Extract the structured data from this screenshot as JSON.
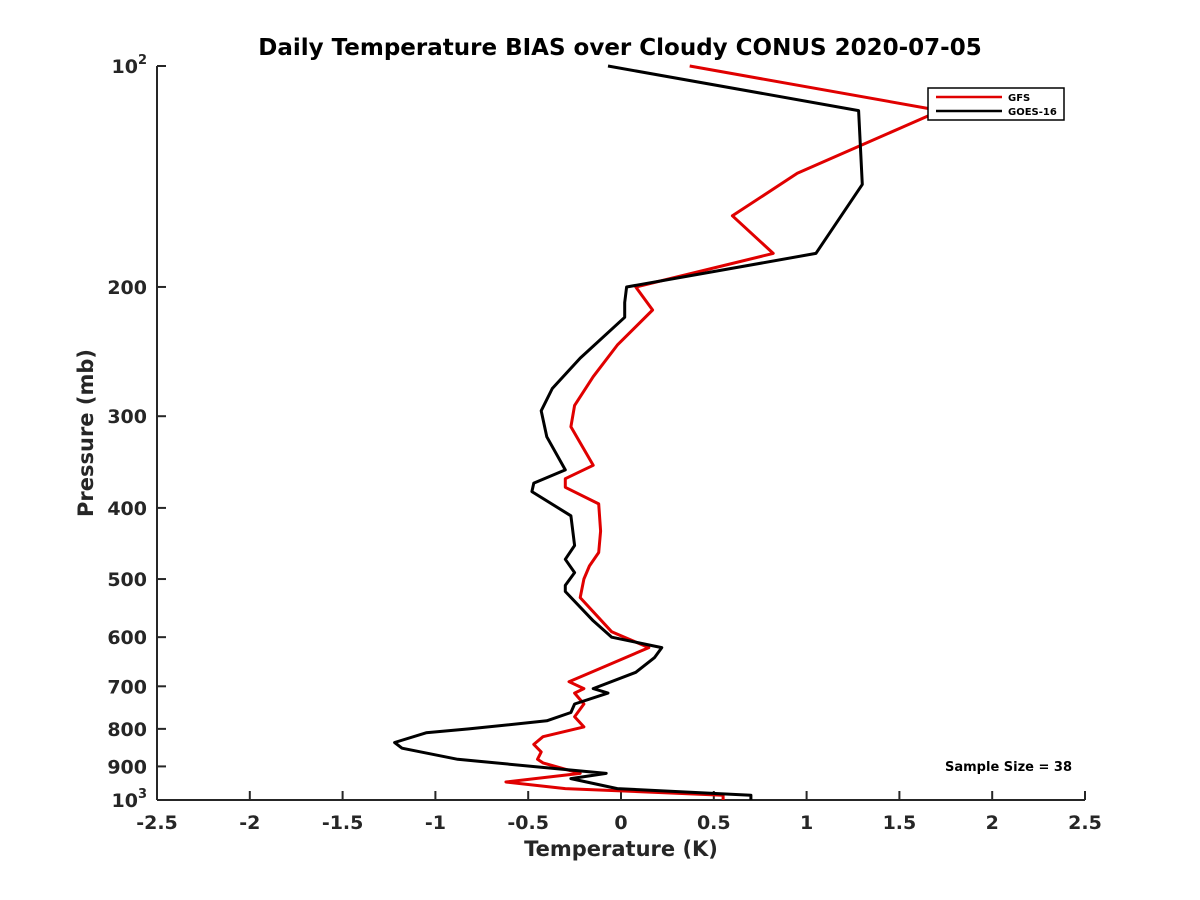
{
  "chart_data": {
    "type": "line",
    "title": "Daily Temperature BIAS over Cloudy CONUS 2020-07-05",
    "xlabel": "Temperature (K)",
    "ylabel": "Pressure (mb)",
    "xlim": [
      -2.5,
      2.5
    ],
    "ylim": [
      100,
      1000
    ],
    "y_scale": "log",
    "y_reversed": true,
    "grid": false,
    "legend_position": "top-right",
    "x_ticks": [
      "-2.5",
      "-2",
      "-1.5",
      "-1",
      "-0.5",
      "0",
      "0.5",
      "1",
      "1.5",
      "2",
      "2.5"
    ],
    "x_tick_values": [
      -2.5,
      -2,
      -1.5,
      -1,
      -0.5,
      0,
      0.5,
      1,
      1.5,
      2,
      2.5
    ],
    "y_ticks": [
      {
        "value": 100,
        "base": "10",
        "exp": "2"
      },
      {
        "value": 200,
        "label": "200"
      },
      {
        "value": 300,
        "label": "300"
      },
      {
        "value": 400,
        "label": "400"
      },
      {
        "value": 500,
        "label": "500"
      },
      {
        "value": 600,
        "label": "600"
      },
      {
        "value": 700,
        "label": "700"
      },
      {
        "value": 800,
        "label": "800"
      },
      {
        "value": 900,
        "label": "900"
      },
      {
        "value": 1000,
        "base": "10",
        "exp": "3"
      }
    ],
    "series": [
      {
        "name": "GFS",
        "color": "#e00000",
        "points": [
          [
            0.37,
            100
          ],
          [
            1.72,
            115
          ],
          [
            0.95,
            140
          ],
          [
            0.6,
            160
          ],
          [
            0.82,
            180
          ],
          [
            0.08,
            200
          ],
          [
            0.17,
            215
          ],
          [
            -0.02,
            240
          ],
          [
            -0.15,
            265
          ],
          [
            -0.25,
            290
          ],
          [
            -0.27,
            310
          ],
          [
            -0.15,
            350
          ],
          [
            -0.3,
            365
          ],
          [
            -0.3,
            375
          ],
          [
            -0.12,
            395
          ],
          [
            -0.11,
            430
          ],
          [
            -0.12,
            460
          ],
          [
            -0.17,
            480
          ],
          [
            -0.2,
            500
          ],
          [
            -0.22,
            530
          ],
          [
            -0.05,
            590
          ],
          [
            0.15,
            620
          ],
          [
            -0.1,
            660
          ],
          [
            -0.28,
            690
          ],
          [
            -0.2,
            705
          ],
          [
            -0.25,
            715
          ],
          [
            -0.2,
            740
          ],
          [
            -0.25,
            770
          ],
          [
            -0.2,
            795
          ],
          [
            -0.42,
            820
          ],
          [
            -0.47,
            840
          ],
          [
            -0.43,
            860
          ],
          [
            -0.45,
            880
          ],
          [
            -0.42,
            890
          ],
          [
            -0.22,
            920
          ],
          [
            -0.62,
            945
          ],
          [
            -0.3,
            965
          ],
          [
            0.55,
            985
          ],
          [
            0.55,
            1000
          ]
        ]
      },
      {
        "name": "GOES-16",
        "color": "#000000",
        "points": [
          [
            -0.07,
            100
          ],
          [
            1.28,
            115
          ],
          [
            1.3,
            145
          ],
          [
            1.05,
            180
          ],
          [
            0.03,
            200
          ],
          [
            0.02,
            210
          ],
          [
            0.02,
            220
          ],
          [
            -0.22,
            250
          ],
          [
            -0.37,
            275
          ],
          [
            -0.43,
            295
          ],
          [
            -0.4,
            320
          ],
          [
            -0.3,
            355
          ],
          [
            -0.47,
            370
          ],
          [
            -0.48,
            380
          ],
          [
            -0.27,
            410
          ],
          [
            -0.25,
            450
          ],
          [
            -0.3,
            470
          ],
          [
            -0.25,
            490
          ],
          [
            -0.3,
            510
          ],
          [
            -0.3,
            520
          ],
          [
            -0.15,
            570
          ],
          [
            -0.05,
            600
          ],
          [
            0.22,
            620
          ],
          [
            0.18,
            640
          ],
          [
            0.08,
            670
          ],
          [
            -0.15,
            705
          ],
          [
            -0.07,
            715
          ],
          [
            -0.25,
            740
          ],
          [
            -0.27,
            760
          ],
          [
            -0.4,
            780
          ],
          [
            -0.82,
            800
          ],
          [
            -1.05,
            810
          ],
          [
            -1.22,
            835
          ],
          [
            -1.18,
            850
          ],
          [
            -0.88,
            880
          ],
          [
            -0.08,
            920
          ],
          [
            -0.27,
            935
          ],
          [
            -0.02,
            965
          ],
          [
            0.7,
            985
          ],
          [
            0.7,
            1000
          ]
        ]
      }
    ],
    "annotations": [
      "Sample Size = 38"
    ]
  }
}
